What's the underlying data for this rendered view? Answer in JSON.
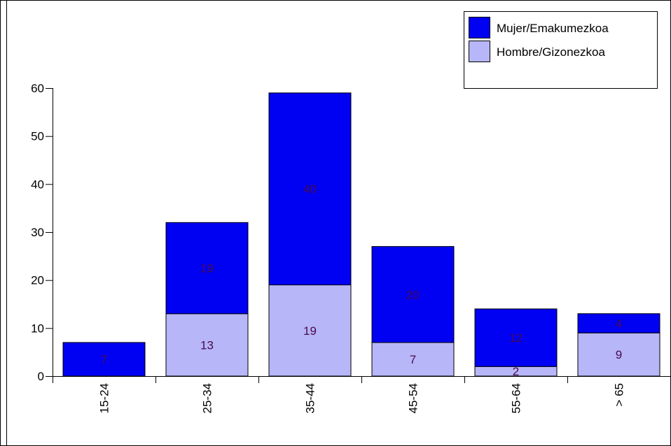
{
  "chart_data": {
    "type": "bar",
    "stacked": true,
    "categories": [
      "15-24",
      "25-34",
      "35-44",
      "45-54",
      "55-64",
      "> 65"
    ],
    "series": [
      {
        "name": "Hombre/Gizonezkoa",
        "values": [
          0,
          13,
          19,
          7,
          2,
          9
        ],
        "color": "#b6b6f8"
      },
      {
        "name": "Mujer/Emakumezkoa",
        "values": [
          7,
          19,
          40,
          20,
          12,
          4
        ],
        "color": "#0000f2"
      }
    ],
    "legend_order": [
      "Mujer/Emakumezkoa",
      "Hombre/Gizonezkoa"
    ],
    "ylim": [
      0,
      60
    ],
    "yticks": [
      0,
      10,
      20,
      30,
      40,
      50,
      60
    ],
    "grid": false,
    "legend_position": "top-right",
    "title": "",
    "xlabel": "",
    "ylabel": ""
  }
}
